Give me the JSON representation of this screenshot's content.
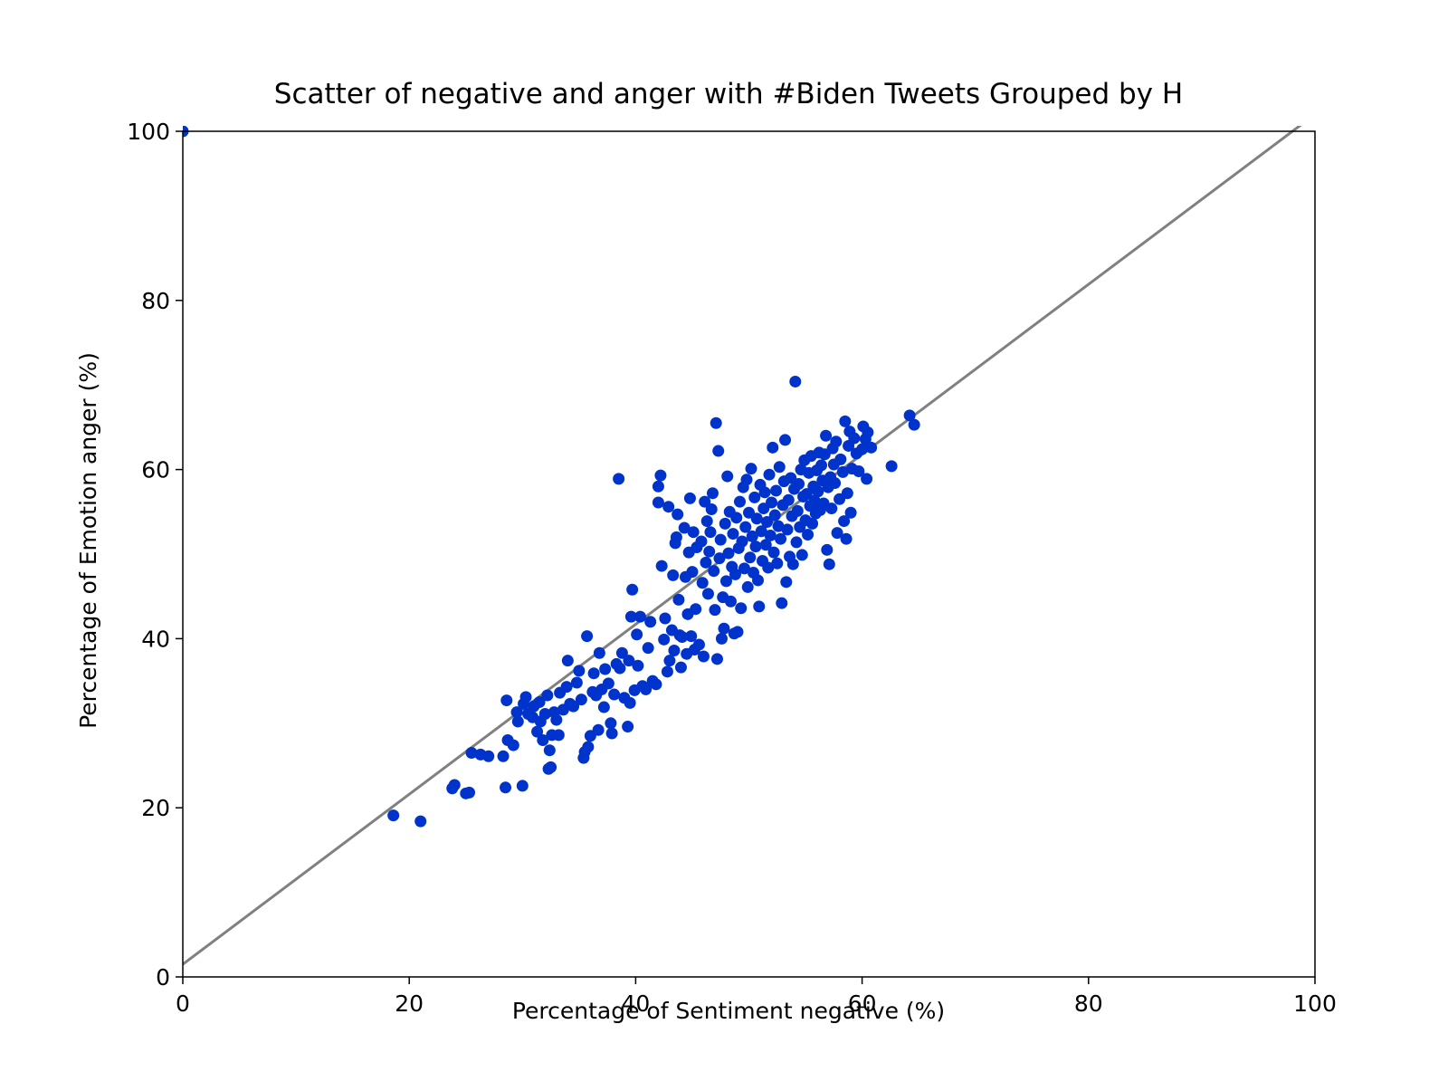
{
  "chart_data": {
    "type": "scatter",
    "title": "Scatter of negative and anger with #Biden Tweets Grouped by H",
    "xlabel": "Percentage of Sentiment negative (%)",
    "ylabel": "Percentage of Emotion anger (%)",
    "xlim": [
      0,
      100
    ],
    "ylim": [
      0,
      100
    ],
    "xticks": [
      0,
      20,
      40,
      60,
      80,
      100
    ],
    "yticks": [
      0,
      20,
      40,
      60,
      80,
      100
    ],
    "xtick_labels": [
      "0",
      "20",
      "40",
      "60",
      "80",
      "100"
    ],
    "ytick_labels": [
      "0",
      "20",
      "40",
      "60",
      "80",
      "100"
    ],
    "grid": false,
    "colors": {
      "points": "#0033cc",
      "trend_line": "#808080"
    },
    "trend_line": {
      "x": [
        0,
        100
      ],
      "y": [
        1.5,
        102
      ]
    },
    "series": [
      {
        "points": [
          [
            0,
            100
          ],
          [
            18.6,
            19.1
          ],
          [
            21.0,
            18.4
          ],
          [
            23.8,
            22.3
          ],
          [
            24.0,
            22.7
          ],
          [
            25.0,
            21.7
          ],
          [
            25.3,
            21.8
          ],
          [
            25.5,
            26.5
          ],
          [
            26.3,
            26.3
          ],
          [
            27.0,
            26.1
          ],
          [
            28.3,
            26.1
          ],
          [
            28.5,
            22.4
          ],
          [
            28.6,
            32.7
          ],
          [
            28.7,
            28.0
          ],
          [
            29.2,
            27.4
          ],
          [
            29.5,
            31.3
          ],
          [
            29.6,
            30.2
          ],
          [
            30.0,
            22.6
          ],
          [
            30.1,
            32.3
          ],
          [
            30.3,
            33.1
          ],
          [
            30.5,
            31.1
          ],
          [
            30.9,
            30.7
          ],
          [
            31.0,
            32.0
          ],
          [
            31.3,
            29.0
          ],
          [
            31.5,
            32.5
          ],
          [
            31.6,
            30.2
          ],
          [
            31.8,
            28.0
          ],
          [
            32.0,
            31.1
          ],
          [
            32.2,
            33.3
          ],
          [
            32.3,
            24.6
          ],
          [
            32.4,
            26.8
          ],
          [
            32.5,
            24.8
          ],
          [
            32.6,
            28.6
          ],
          [
            32.8,
            31.3
          ],
          [
            33.0,
            30.4
          ],
          [
            33.2,
            28.6
          ],
          [
            33.3,
            33.6
          ],
          [
            33.6,
            31.6
          ],
          [
            33.9,
            34.3
          ],
          [
            34.0,
            37.4
          ],
          [
            34.2,
            32.3
          ],
          [
            34.5,
            32.0
          ],
          [
            34.8,
            34.8
          ],
          [
            35.0,
            36.2
          ],
          [
            35.2,
            32.8
          ],
          [
            35.4,
            25.9
          ],
          [
            35.5,
            26.6
          ],
          [
            35.7,
            40.3
          ],
          [
            35.8,
            27.2
          ],
          [
            36.0,
            28.5
          ],
          [
            36.2,
            33.7
          ],
          [
            36.3,
            35.9
          ],
          [
            36.5,
            33.3
          ],
          [
            36.7,
            29.2
          ],
          [
            36.8,
            38.3
          ],
          [
            37.0,
            34.0
          ],
          [
            37.2,
            31.9
          ],
          [
            37.3,
            36.4
          ],
          [
            37.6,
            34.7
          ],
          [
            37.8,
            30.0
          ],
          [
            37.9,
            28.8
          ],
          [
            38.1,
            33.4
          ],
          [
            38.3,
            37.0
          ],
          [
            38.5,
            58.9
          ],
          [
            38.6,
            36.5
          ],
          [
            38.8,
            38.3
          ],
          [
            39.0,
            33.0
          ],
          [
            39.3,
            29.6
          ],
          [
            39.4,
            37.4
          ],
          [
            39.5,
            32.4
          ],
          [
            39.6,
            42.6
          ],
          [
            39.7,
            45.8
          ],
          [
            39.9,
            33.9
          ],
          [
            40.1,
            40.5
          ],
          [
            40.2,
            36.8
          ],
          [
            40.4,
            42.6
          ],
          [
            40.6,
            34.4
          ],
          [
            40.9,
            34.0
          ],
          [
            41.1,
            38.9
          ],
          [
            41.3,
            42.0
          ],
          [
            41.5,
            35.0
          ],
          [
            41.8,
            34.6
          ],
          [
            42.0,
            56.1
          ],
          [
            42.0,
            58.0
          ],
          [
            42.2,
            59.3
          ],
          [
            42.3,
            48.6
          ],
          [
            42.5,
            39.9
          ],
          [
            42.6,
            42.4
          ],
          [
            42.8,
            36.1
          ],
          [
            42.9,
            55.6
          ],
          [
            43.0,
            37.4
          ],
          [
            43.2,
            41.0
          ],
          [
            43.3,
            47.5
          ],
          [
            43.4,
            38.6
          ],
          [
            43.5,
            51.3
          ],
          [
            43.6,
            52.0
          ],
          [
            43.7,
            54.7
          ],
          [
            43.8,
            44.6
          ],
          [
            43.9,
            40.4
          ],
          [
            44.0,
            36.6
          ],
          [
            44.1,
            40.2
          ],
          [
            44.3,
            53.1
          ],
          [
            44.4,
            47.3
          ],
          [
            44.5,
            38.2
          ],
          [
            44.6,
            42.9
          ],
          [
            44.7,
            50.2
          ],
          [
            44.8,
            56.6
          ],
          [
            44.9,
            40.3
          ],
          [
            45.0,
            47.9
          ],
          [
            45.1,
            52.6
          ],
          [
            45.2,
            38.7
          ],
          [
            45.3,
            43.5
          ],
          [
            45.4,
            50.8
          ],
          [
            45.6,
            39.3
          ],
          [
            45.8,
            51.5
          ],
          [
            45.9,
            46.6
          ],
          [
            46.0,
            37.9
          ],
          [
            46.1,
            56.2
          ],
          [
            46.2,
            49.0
          ],
          [
            46.3,
            53.9
          ],
          [
            46.4,
            45.3
          ],
          [
            46.5,
            50.3
          ],
          [
            46.6,
            52.6
          ],
          [
            46.7,
            55.3
          ],
          [
            46.8,
            57.2
          ],
          [
            46.9,
            48.0
          ],
          [
            47.0,
            43.4
          ],
          [
            47.1,
            65.5
          ],
          [
            47.2,
            37.6
          ],
          [
            47.3,
            62.2
          ],
          [
            47.4,
            49.5
          ],
          [
            47.5,
            51.7
          ],
          [
            47.6,
            40.0
          ],
          [
            47.7,
            44.9
          ],
          [
            47.8,
            41.2
          ],
          [
            47.9,
            53.6
          ],
          [
            48.0,
            46.8
          ],
          [
            48.1,
            59.2
          ],
          [
            48.2,
            50.1
          ],
          [
            48.3,
            55.0
          ],
          [
            48.4,
            44.4
          ],
          [
            48.5,
            48.5
          ],
          [
            48.6,
            52.4
          ],
          [
            48.7,
            40.6
          ],
          [
            48.8,
            47.6
          ],
          [
            48.9,
            54.3
          ],
          [
            49.0,
            40.8
          ],
          [
            49.1,
            50.7
          ],
          [
            49.2,
            56.2
          ],
          [
            49.3,
            43.6
          ],
          [
            49.4,
            51.5
          ],
          [
            49.5,
            57.9
          ],
          [
            49.6,
            48.3
          ],
          [
            49.7,
            53.2
          ],
          [
            49.8,
            58.8
          ],
          [
            49.9,
            46.1
          ],
          [
            50.0,
            54.9
          ],
          [
            50.1,
            49.6
          ],
          [
            50.2,
            60.1
          ],
          [
            50.3,
            52.1
          ],
          [
            50.4,
            47.8
          ],
          [
            50.5,
            56.7
          ],
          [
            50.6,
            50.9
          ],
          [
            50.7,
            54.2
          ],
          [
            50.8,
            46.9
          ],
          [
            50.9,
            43.8
          ],
          [
            51.0,
            58.2
          ],
          [
            51.1,
            52.7
          ],
          [
            51.2,
            49.2
          ],
          [
            51.3,
            55.4
          ],
          [
            51.4,
            57.3
          ],
          [
            51.5,
            51.1
          ],
          [
            51.6,
            53.8
          ],
          [
            51.7,
            48.4
          ],
          [
            51.8,
            59.4
          ],
          [
            51.9,
            52.2
          ],
          [
            52.0,
            56.1
          ],
          [
            52.1,
            62.6
          ],
          [
            52.2,
            50.2
          ],
          [
            52.3,
            54.6
          ],
          [
            52.4,
            57.5
          ],
          [
            52.5,
            48.9
          ],
          [
            52.6,
            53.3
          ],
          [
            52.7,
            60.3
          ],
          [
            52.8,
            51.8
          ],
          [
            52.9,
            44.2
          ],
          [
            53.0,
            55.8
          ],
          [
            53.1,
            58.6
          ],
          [
            53.2,
            63.5
          ],
          [
            53.3,
            46.7
          ],
          [
            53.4,
            52.9
          ],
          [
            53.5,
            56.4
          ],
          [
            53.6,
            49.7
          ],
          [
            53.7,
            59.0
          ],
          [
            53.8,
            54.5
          ],
          [
            53.9,
            48.8
          ],
          [
            54.0,
            57.7
          ],
          [
            54.1,
            70.4
          ],
          [
            54.2,
            51.4
          ],
          [
            54.3,
            55.1
          ],
          [
            54.4,
            58.3
          ],
          [
            54.5,
            53.2
          ],
          [
            54.6,
            60.0
          ],
          [
            54.7,
            49.9
          ],
          [
            54.8,
            56.8
          ],
          [
            54.9,
            61.1
          ],
          [
            55.0,
            54.0
          ],
          [
            55.1,
            57.1
          ],
          [
            55.2,
            52.3
          ],
          [
            55.3,
            59.6
          ],
          [
            55.4,
            55.7
          ],
          [
            55.5,
            61.6
          ],
          [
            55.6,
            53.6
          ],
          [
            55.7,
            58.0
          ],
          [
            55.8,
            56.3
          ],
          [
            55.9,
            54.8
          ],
          [
            56.0,
            59.9
          ],
          [
            56.1,
            57.4
          ],
          [
            56.2,
            62.0
          ],
          [
            56.3,
            55.2
          ],
          [
            56.4,
            60.5
          ],
          [
            56.5,
            58.7
          ],
          [
            56.6,
            56.0
          ],
          [
            56.7,
            61.8
          ],
          [
            56.8,
            64.0
          ],
          [
            56.9,
            50.5
          ],
          [
            57.0,
            57.9
          ],
          [
            57.1,
            48.8
          ],
          [
            57.2,
            59.1
          ],
          [
            57.3,
            55.4
          ],
          [
            57.4,
            62.5
          ],
          [
            57.5,
            60.6
          ],
          [
            57.6,
            58.4
          ],
          [
            57.7,
            63.3
          ],
          [
            57.8,
            52.5
          ],
          [
            58.0,
            56.5
          ],
          [
            58.1,
            61.2
          ],
          [
            58.3,
            59.7
          ],
          [
            58.4,
            53.9
          ],
          [
            58.5,
            65.7
          ],
          [
            58.6,
            51.8
          ],
          [
            58.7,
            57.2
          ],
          [
            58.8,
            62.8
          ],
          [
            58.9,
            64.5
          ],
          [
            59.0,
            54.9
          ],
          [
            59.1,
            60.1
          ],
          [
            59.3,
            63.7
          ],
          [
            59.5,
            61.9
          ],
          [
            59.7,
            59.8
          ],
          [
            60.0,
            62.4
          ],
          [
            60.1,
            65.1
          ],
          [
            60.3,
            63.6
          ],
          [
            60.4,
            58.9
          ],
          [
            60.5,
            64.4
          ],
          [
            60.8,
            62.6
          ],
          [
            62.6,
            60.4
          ],
          [
            64.2,
            66.4
          ],
          [
            64.6,
            65.3
          ]
        ]
      }
    ]
  }
}
